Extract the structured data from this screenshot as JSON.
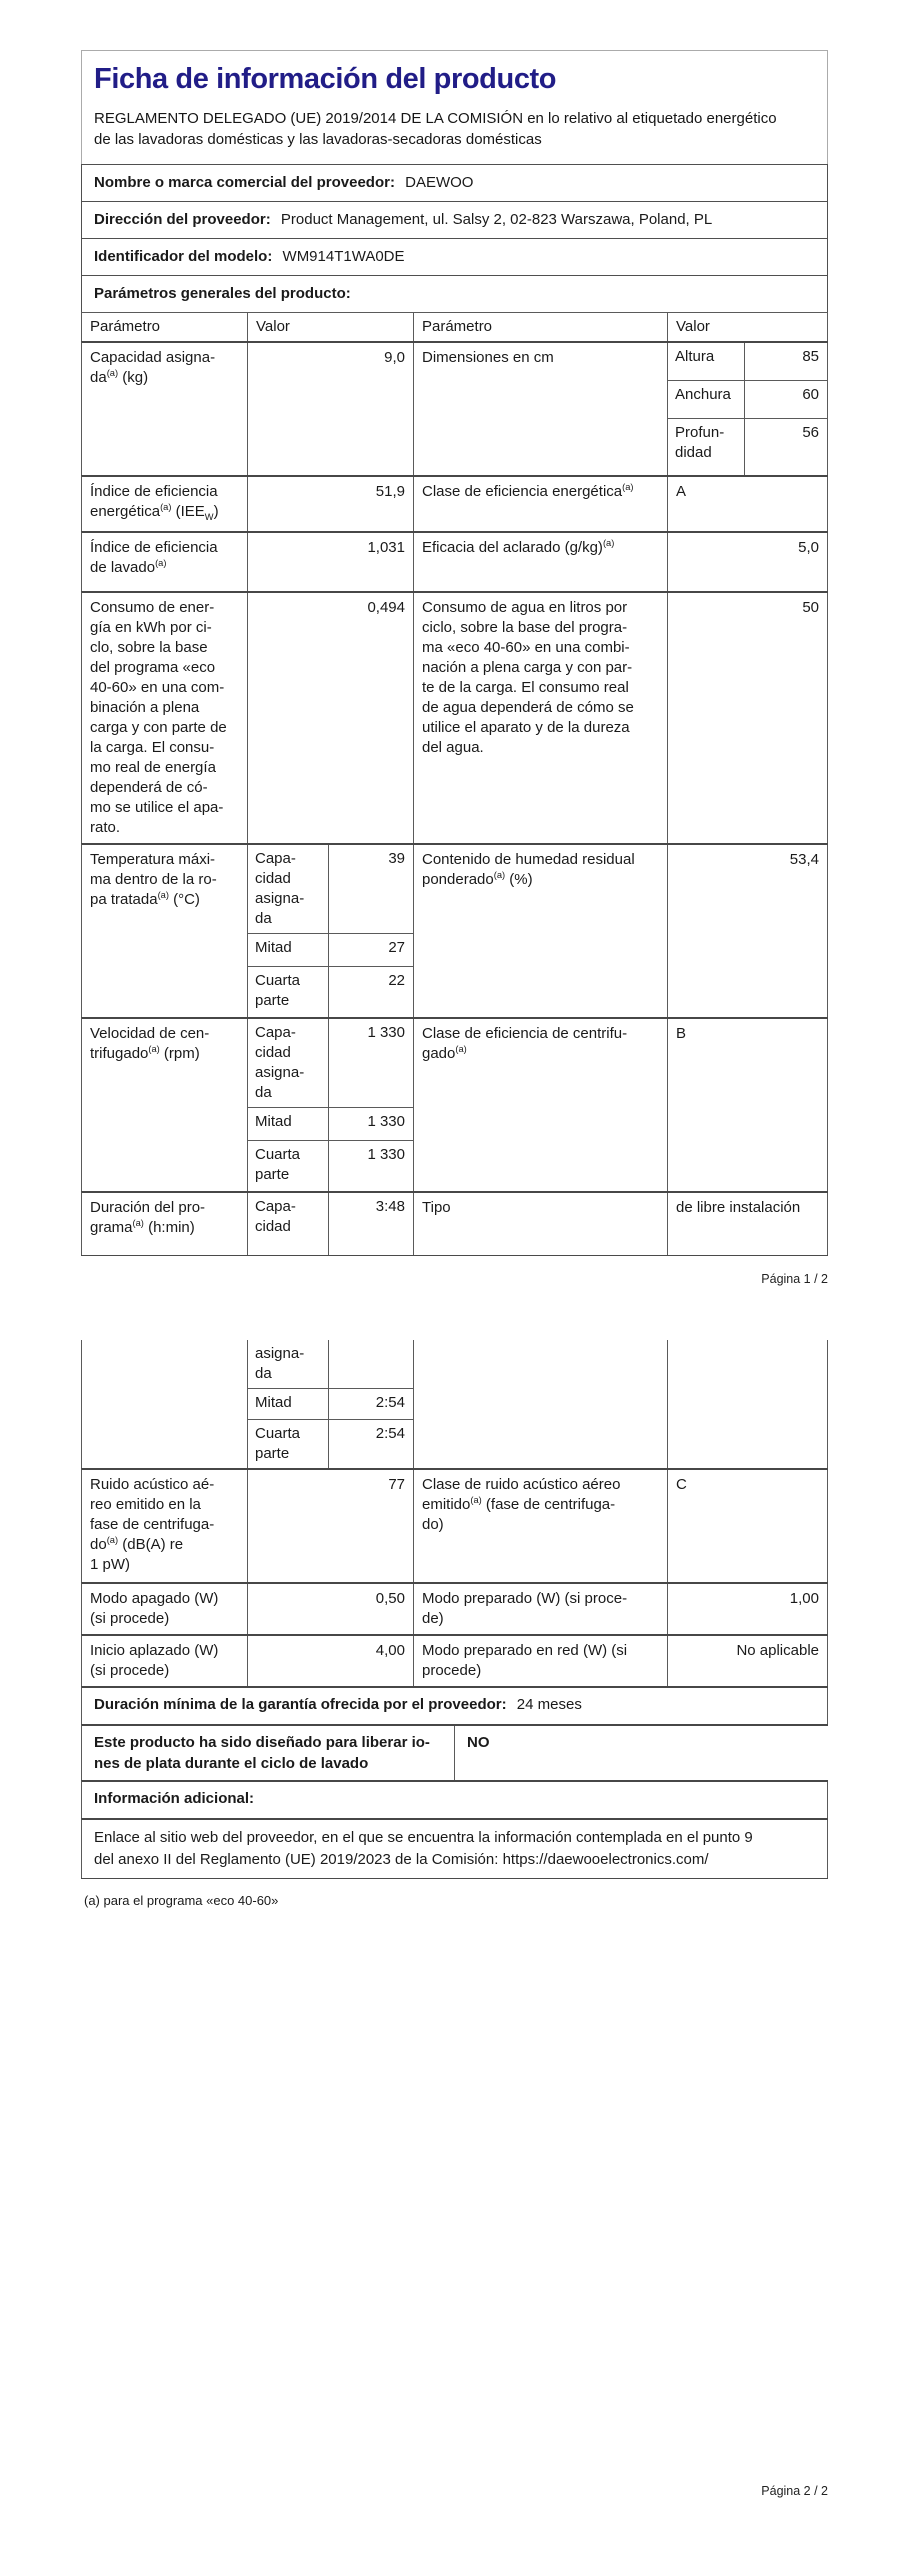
{
  "colors": {
    "title_text": "#211d87",
    "body_text": "#1a1a1a",
    "border_dark": "#4f4f4f",
    "border_light": "#ababab"
  },
  "header": {
    "title": "Ficha de información del producto",
    "subtitle": "REGLAMENTO DELEGADO (UE) 2019/2014 DE LA COMISIÓN en lo relativo al etiquetado energético\nde las lavadoras domésticas y las lavadoras-secadoras domésticas"
  },
  "supplier": {
    "name_label": "Nombre o marca comercial del proveedor:",
    "name_value": "DAEWOO",
    "address_label": "Dirección del proveedor:",
    "address_value": "Product Management, ul. Salsy 2, 02-823 Warszawa, Poland, PL",
    "model_label": "Identificador del modelo:",
    "model_value": "WM914T1WA0DE",
    "general_params_label": "Parámetros generales del producto:"
  },
  "table": {
    "header": {
      "param1": "Parámetro",
      "value1": "Valor",
      "param2": "Parámetro",
      "value2": "Valor"
    },
    "rows": {
      "capacity": {
        "p1": "Capacidad  asigna-\nda^(a)^  (kg)",
        "v1": "9,0",
        "p2": "Dimensiones en cm",
        "dims": [
          {
            "label": "Altura",
            "value": "85"
          },
          {
            "label": "Anchura",
            "value": "60"
          },
          {
            "label": "Profun-\ndidad",
            "value": "56"
          }
        ]
      },
      "eei": {
        "p1": "Índice de eficiencia\nenergética^(a)^  (IEE~W~)",
        "v1": "51,9",
        "p2": "Clase de eficiencia energética^(a)^",
        "v2": "A"
      },
      "washing": {
        "p1": "Índice de eficiencia\nde lavado^(a)^",
        "v1": "1,031",
        "p2": "Eficacia del aclarado (g/kg)^(a)^",
        "v2": "5,0"
      },
      "energy": {
        "p1": "Consumo de ener-\ngía en kWh por ci-\nclo, sobre la base\ndel programa «eco\n40-60» en una com-\nbinación a plena\ncarga y con parte de\nla carga. El consu-\nmo real de energía\ndependerá de có-\nmo se utilice el apa-\nrato.",
        "v1": "0,494",
        "p2": "Consumo de agua en litros por\nciclo, sobre la base del progra-\nma «eco 40-60» en una combi-\nnación a plena carga y con par-\nte de la carga. El consumo real\nde agua dependerá de cómo se\nutilice el aparato y de la dureza\ndel agua.",
        "v2": "50"
      },
      "temperature": {
        "p1": "Temperatura máxi-\nma dentro de la ro-\npa tratada^(a)^  (°C)",
        "subs": [
          {
            "label": "Capa-\ncidad\nasigna-\nda",
            "value": "39"
          },
          {
            "label": "Mitad",
            "value": "27"
          },
          {
            "label": "Cuarta\nparte",
            "value": "22"
          }
        ],
        "p2": "Contenido de humedad residual\nponderado^(a)^  (%)",
        "v2": "53,4"
      },
      "spin": {
        "p1": "Velocidad de cen-\ntrifugado^(a)^  (rpm)",
        "subs": [
          {
            "label": "Capa-\ncidad\nasigna-\nda",
            "value": "1 330"
          },
          {
            "label": "Mitad",
            "value": "1 330"
          },
          {
            "label": "Cuarta\nparte",
            "value": "1 330"
          }
        ],
        "p2": "Clase de eficiencia de centrifu-\ngado^(a)^",
        "v2": "B"
      },
      "duration": {
        "p1": "Duración del pro-\ngrama^(a)^  (h:min)",
        "sub_page1": {
          "label": "Capa-\ncidad",
          "value": "3:48"
        },
        "p2": "Tipo",
        "v2": "de libre instalación",
        "subs_page2": [
          {
            "label": "asigna-\nda",
            "value": ""
          },
          {
            "label": "Mitad",
            "value": "2:54"
          },
          {
            "label": "Cuarta\nparte",
            "value": "2:54"
          }
        ]
      },
      "noise": {
        "p1": "Ruido acústico aé-\nreo emitido en la\nfase de centrifuga-\ndo^(a)^  (dB(A) re\n1 pW)",
        "v1": "77",
        "p2": "Clase de ruido acústico aéreo\nemitido^(a)^  (fase de centrifuga-\ndo)",
        "v2": "C"
      },
      "off_mode": {
        "p1": "Modo apagado (W)\n(si procede)",
        "v1": "0,50",
        "p2": "Modo preparado (W) (si proce-\nde)",
        "v2": "1,00"
      },
      "delayed_start": {
        "p1": "Inicio aplazado (W)\n(si procede)",
        "v1": "4,00",
        "p2": "Modo preparado en red (W) (si\nprocede)",
        "v2": "No aplicable"
      },
      "warranty": {
        "label": "Duración mínima de la garantía ofrecida por el proveedor:",
        "value": "24 meses"
      },
      "silver_ions": {
        "label": "Este producto ha sido diseñado para liberar io-\nnes de plata durante el ciclo de lavado",
        "value": "NO"
      },
      "additional_info": {
        "label": "Información adicional:",
        "link_text": "Enlace al sitio web del proveedor, en el que se encuentra la información contemplada en el punto 9\ndel anexo II del Reglamento (UE) 2019/2023 de la Comisión:  https://daewooelectronics.com/"
      }
    }
  },
  "footnote": "(a) para el programa «eco 40-60»",
  "page1_footer": "Página 1 / 2",
  "page2_footer": "Página 2 / 2"
}
